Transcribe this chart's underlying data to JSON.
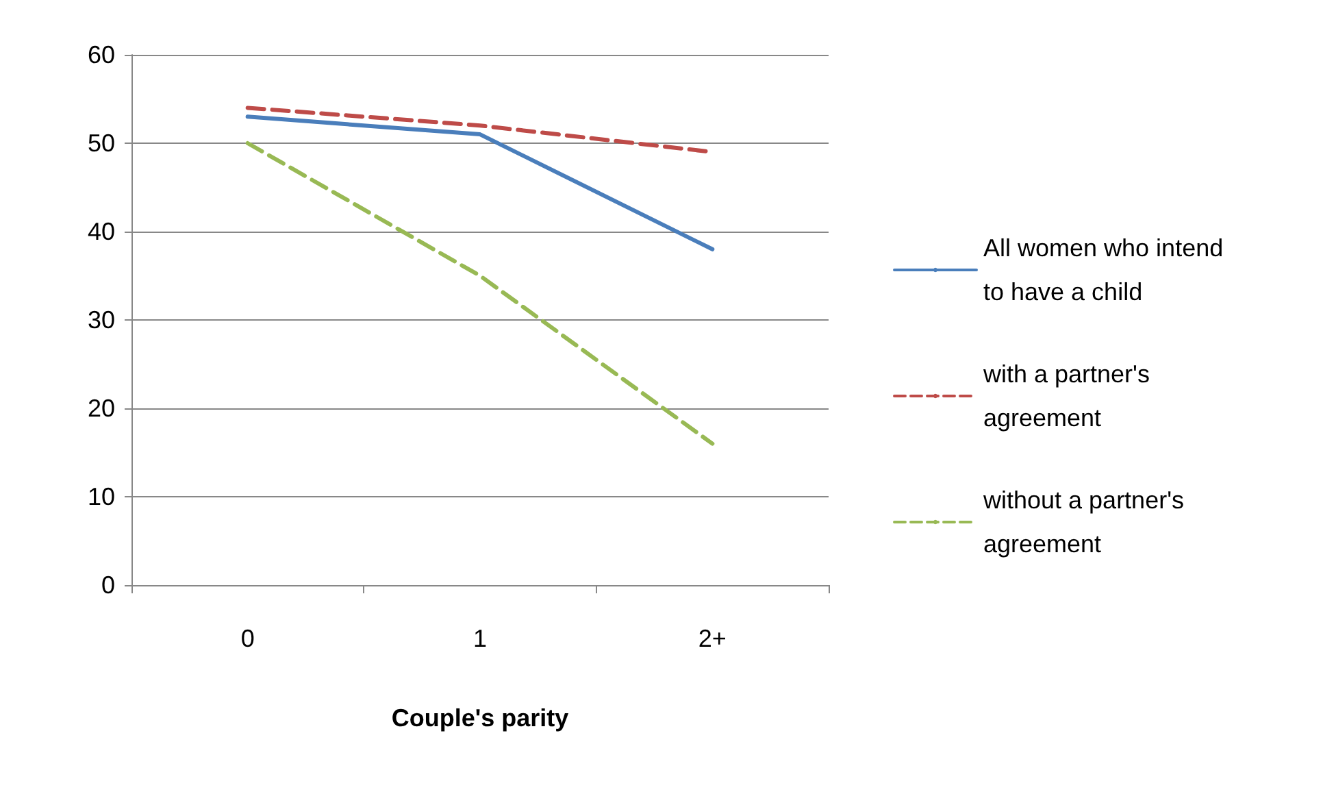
{
  "chart_data": {
    "type": "line",
    "xlabel": "Couple's parity",
    "categories": [
      "0",
      "1",
      "2+"
    ],
    "series": [
      {
        "name": "All women who intend to have a child",
        "color": "#4a7ebb",
        "line_style": "solid",
        "values": [
          53,
          51,
          38
        ]
      },
      {
        "name": "with a partner's agreement",
        "color": "#be4b48",
        "line_style": "dashed",
        "values": [
          54,
          52,
          49
        ]
      },
      {
        "name": "without a partner's agreement",
        "color": "#98b954",
        "line_style": "dashed",
        "values": [
          50,
          35,
          16
        ]
      }
    ],
    "ylim": [
      0,
      60
    ],
    "yticks": [
      0,
      10,
      20,
      30,
      40,
      50,
      60
    ],
    "grid": "y",
    "legend": "right",
    "marker": "none"
  }
}
